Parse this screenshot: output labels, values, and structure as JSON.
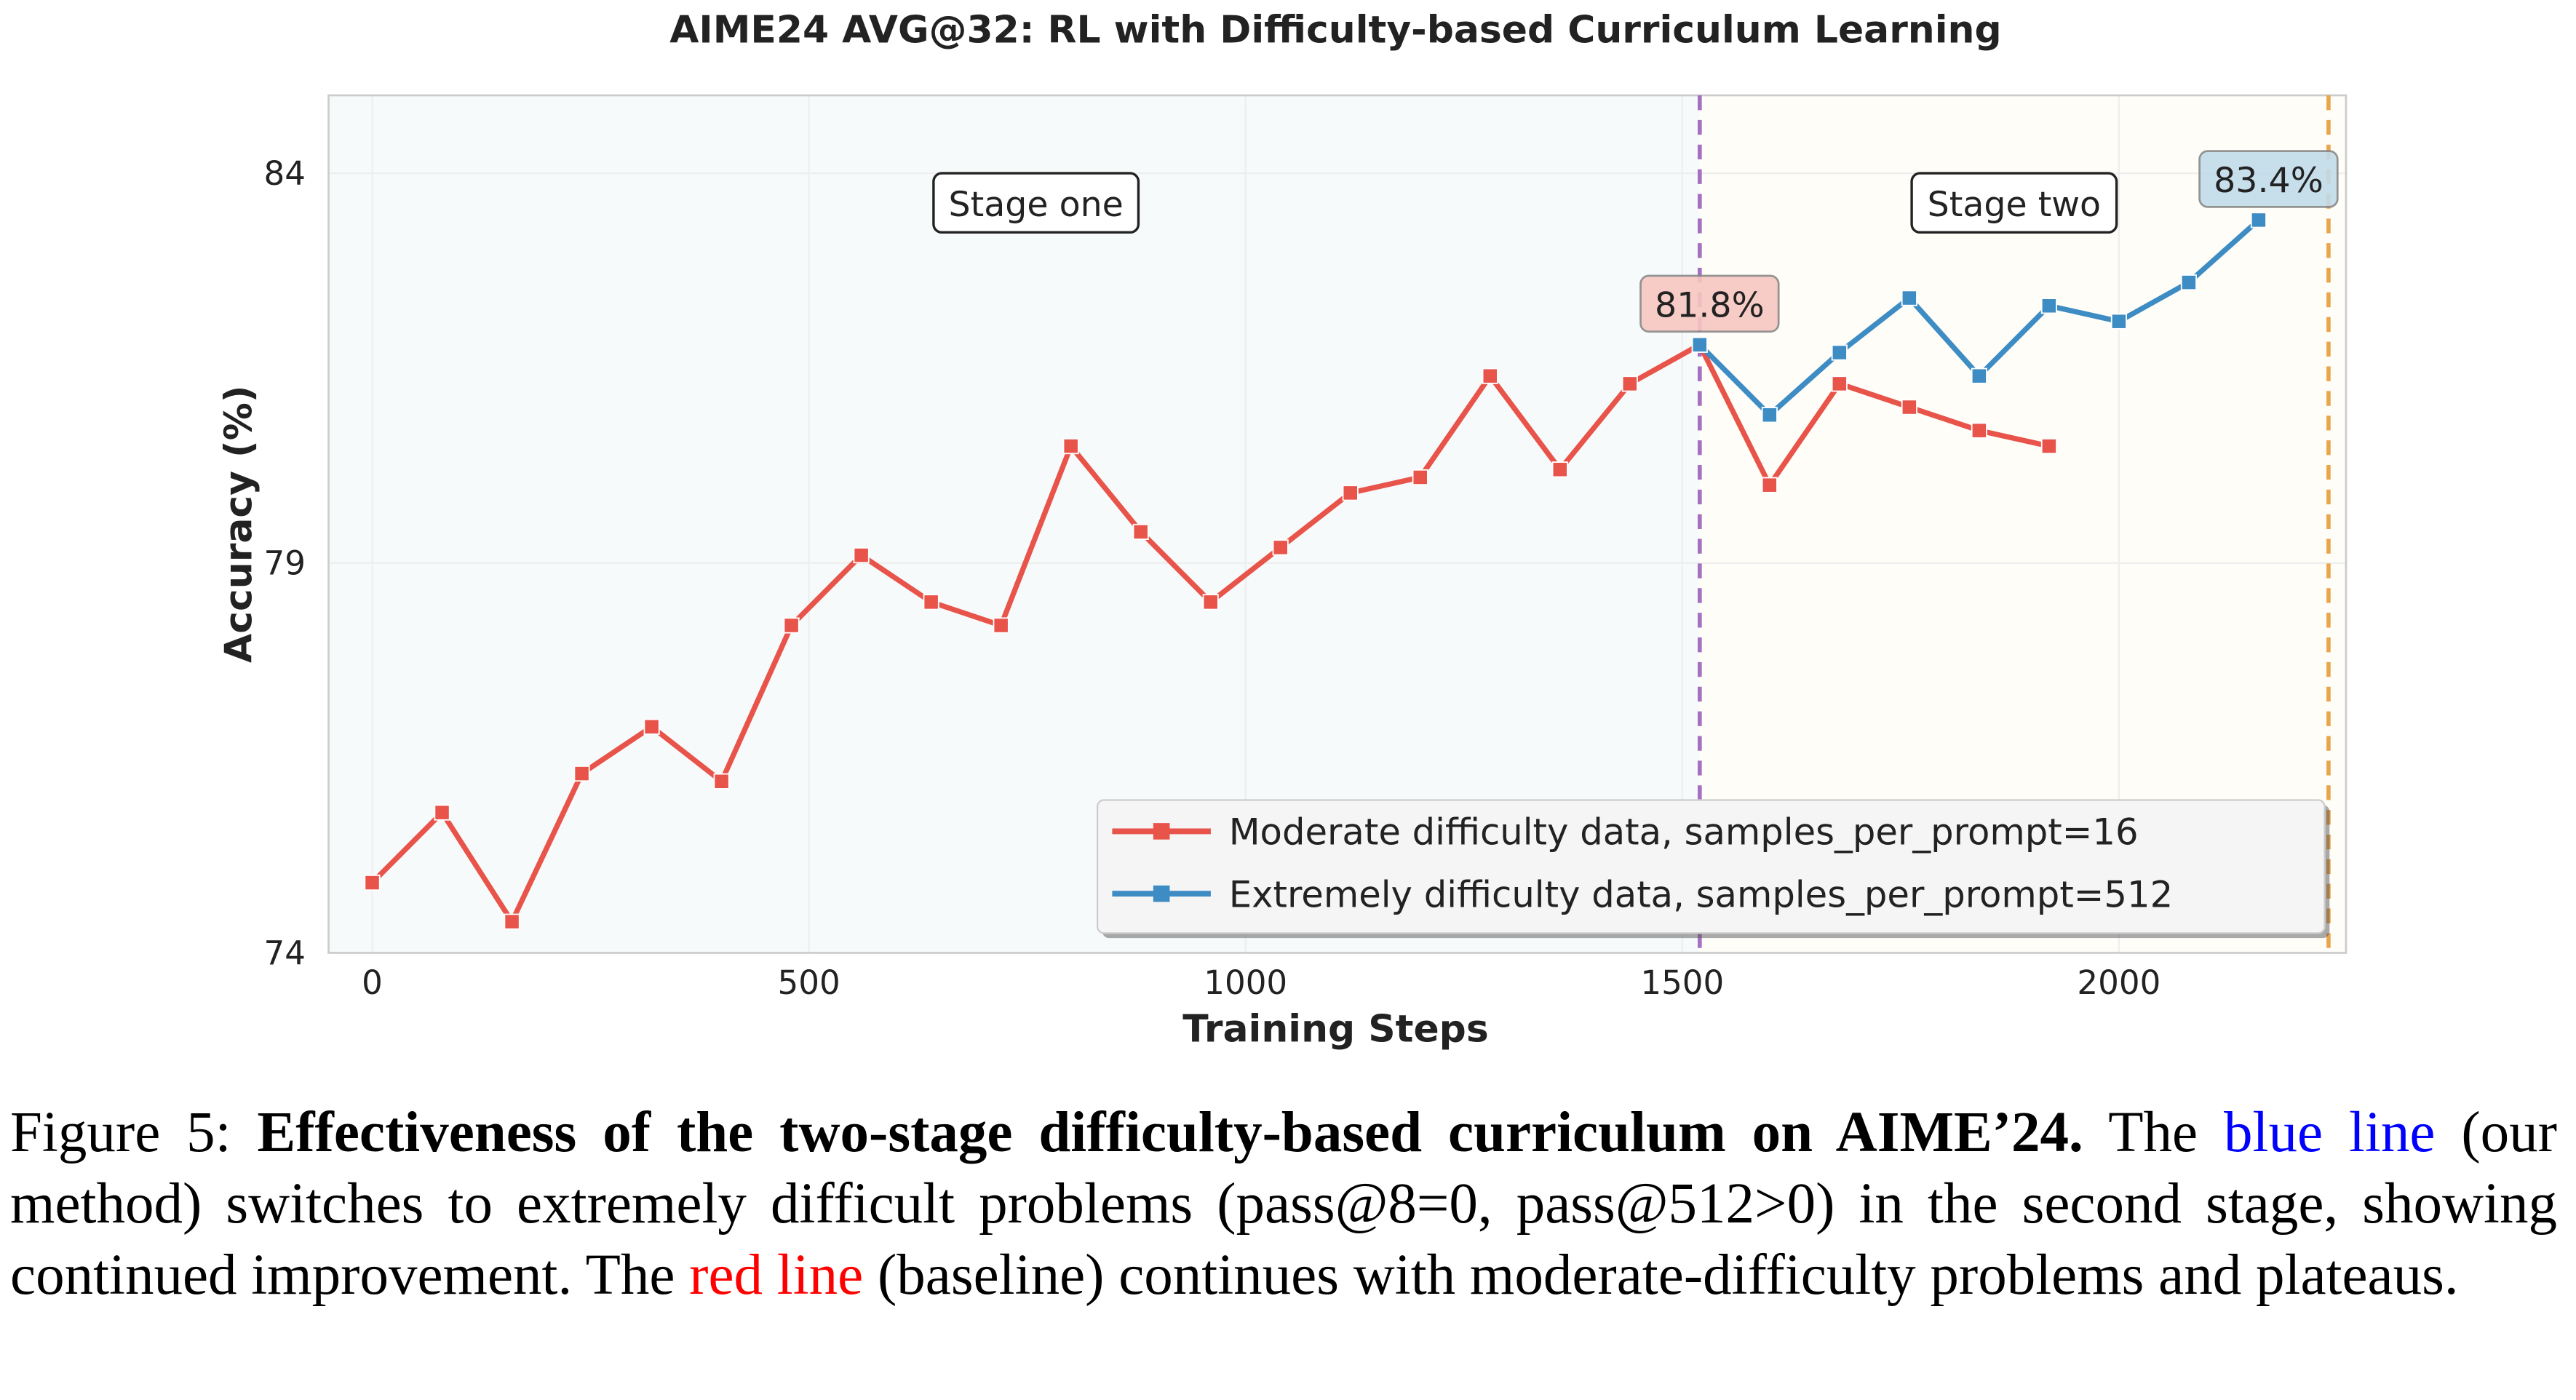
{
  "chart_data": {
    "type": "line",
    "title": "AIME24 AVG@32: RL with Difficulty-based Curriculum Learning",
    "xlabel": "Training Steps",
    "ylabel": "Accuracy (%)",
    "xlim": [
      -50,
      2260
    ],
    "ylim": [
      74,
      85
    ],
    "xticks": [
      0,
      500,
      1000,
      1500,
      2000
    ],
    "yticks": [
      74,
      79,
      84
    ],
    "grid": true,
    "legend_position": "lower-right",
    "series": [
      {
        "name": "Moderate difficulty data, samples_per_prompt=16",
        "color": "#e8534a",
        "x": [
          0,
          80,
          160,
          240,
          320,
          400,
          480,
          560,
          640,
          720,
          800,
          880,
          960,
          1040,
          1120,
          1200,
          1280,
          1360,
          1440,
          1520,
          1600,
          1680,
          1760,
          1840,
          1920
        ],
        "y": [
          74.9,
          75.8,
          74.4,
          76.3,
          76.9,
          76.2,
          78.2,
          79.1,
          78.5,
          78.2,
          80.5,
          79.4,
          78.5,
          79.2,
          79.9,
          80.1,
          81.4,
          80.2,
          81.3,
          81.8,
          80.0,
          81.3,
          81.0,
          80.7,
          80.5
        ]
      },
      {
        "name": "Extremely difficulty data, samples_per_prompt=512",
        "color": "#3d8cc4",
        "x": [
          1520,
          1600,
          1680,
          1760,
          1840,
          1920,
          2000,
          2080,
          2160
        ],
        "y": [
          81.8,
          80.9,
          81.7,
          82.4,
          81.4,
          82.3,
          82.1,
          82.6,
          83.4
        ]
      }
    ],
    "vlines": [
      {
        "x": 1520,
        "color": "#a570c2"
      },
      {
        "x": 2240,
        "color": "#e8a54a"
      }
    ],
    "regions": [
      {
        "label": "Stage one",
        "from": -50,
        "to": 1520,
        "color": "#f7fafa",
        "label_x": 760,
        "label_y": 83.6
      },
      {
        "label": "Stage two",
        "from": 1520,
        "to": 2260,
        "color": "#fffdf8",
        "label_x": 1880,
        "label_y": 83.6
      }
    ],
    "annotations": [
      {
        "text": "81.8%",
        "x": 1520,
        "y": 81.8,
        "color": "#f7c6c1"
      },
      {
        "text": "83.4%",
        "x": 2160,
        "y": 83.4,
        "color": "#c2dbea"
      }
    ]
  },
  "caption": {
    "label": "Figure 5: ",
    "bold": "Effectiveness of the two-stage difficulty-based curriculum on AIME’24.",
    "t1": " The ",
    "blue": "blue line",
    "t2": " (our method) switches to extremely difficult problems (pass@8=0, pass@512>0) in the second stage, showing continued improvement. The ",
    "red": "red line",
    "t3": " (baseline) continues with moderate-difficulty problems and plateaus."
  }
}
